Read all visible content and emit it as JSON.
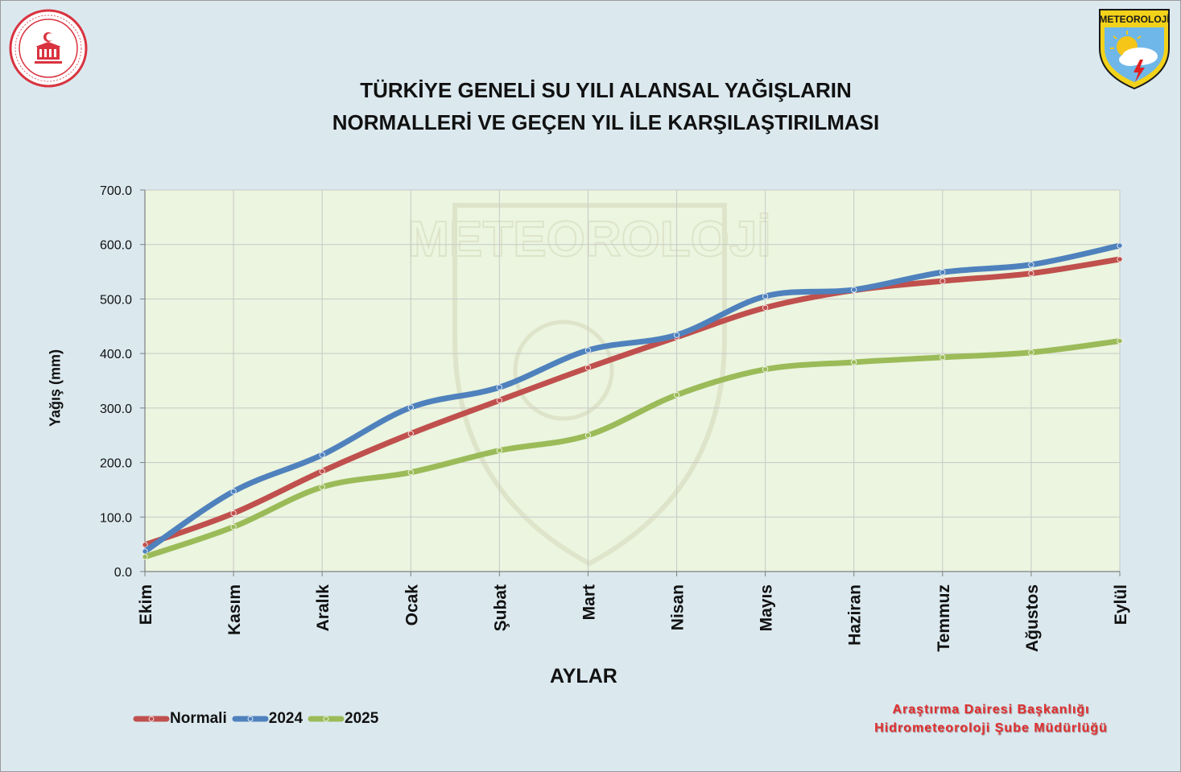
{
  "title": {
    "line1": "TÜRKİYE GENELİ SU YILI ALANSAL YAĞIŞLARIN",
    "line2": "NORMALLERİ VE GEÇEN YIL İLE KARŞILAŞTIRILMASI"
  },
  "logos": {
    "left": "ministry-seal",
    "right_text": "METEOROLOJİ",
    "watermark_text": "METEOROLOJİ"
  },
  "credits": {
    "line1": "Araştırma Dairesi Başkanlığı",
    "line2": "Hidrometeoroloji Şube Müdürlüğü"
  },
  "colors": {
    "background": "#dbe9ef",
    "plot_background": "#ebf5df",
    "grid": "#c8c8c8",
    "credits": "#e03030"
  },
  "chart_data": {
    "type": "line",
    "title": "TÜRKİYE GENELİ SU YILI ALANSAL YAĞIŞLARIN NORMALLERİ VE GEÇEN YIL İLE KARŞILAŞTIRILMASI",
    "xlabel": "AYLAR",
    "ylabel": "Yağış (mm)",
    "ylim": [
      0,
      700
    ],
    "yticks": [
      0,
      100,
      200,
      300,
      400,
      500,
      600,
      700
    ],
    "ytick_labels": [
      "0.0",
      "100.0",
      "200.0",
      "300.0",
      "400.0",
      "500.0",
      "600.0",
      "700.0"
    ],
    "categories": [
      "Ekim",
      "Kasım",
      "Aralık",
      "Ocak",
      "Şubat",
      "Mart",
      "Nisan",
      "Mayıs",
      "Haziran",
      "Temmuz",
      "Ağustos",
      "Eylül"
    ],
    "grid": true,
    "legend_position": "bottom-left",
    "series": [
      {
        "name": "Normali",
        "color": "#c0504d",
        "values": [
          49,
          107,
          184,
          253,
          314,
          374,
          430,
          484,
          516,
          533,
          547,
          573
        ]
      },
      {
        "name": "2024",
        "color": "#4f81bd",
        "values": [
          37,
          147,
          214,
          301,
          338,
          406,
          434,
          505,
          517,
          549,
          563,
          598
        ]
      },
      {
        "name": "2025",
        "color": "#9bbb59",
        "values": [
          27,
          82,
          155,
          182,
          222,
          250,
          324,
          371,
          384,
          393,
          402,
          423
        ]
      }
    ]
  }
}
